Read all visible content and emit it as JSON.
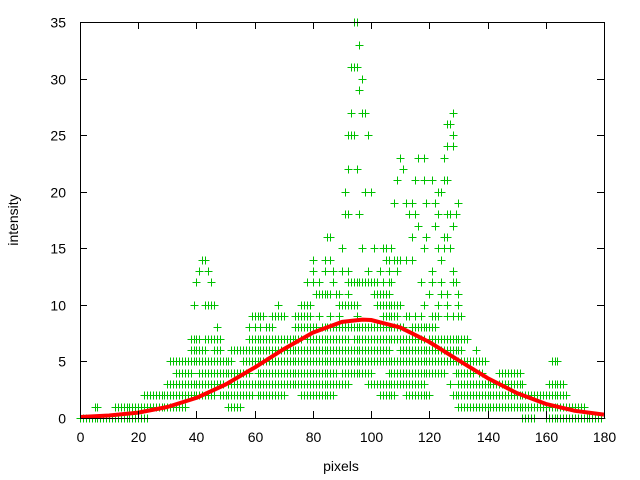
{
  "chart_data": {
    "type": "scatter",
    "title": "",
    "xlabel": "pixels",
    "ylabel": "intensity",
    "xlim": [
      0,
      180
    ],
    "ylim": [
      0,
      35
    ],
    "xticks": [
      "0",
      "20",
      "40",
      "60",
      "80",
      "100",
      "120",
      "140",
      "160",
      "180"
    ],
    "yticks": [
      "0",
      "5",
      "10",
      "15",
      "20",
      "25",
      "30",
      "35"
    ],
    "grid": false,
    "legend": "none",
    "colors": {
      "points": "#00c000",
      "fit": "#ff0000",
      "axes": "#000000"
    },
    "points_marker": "plus",
    "points_by_intensity": [
      {
        "y": 0,
        "x": [
          0,
          1,
          2,
          3,
          4,
          5,
          6,
          7,
          8,
          9,
          10,
          11,
          12,
          13,
          14,
          15,
          16,
          17,
          18,
          19,
          20,
          21,
          22,
          23,
          152,
          153,
          154,
          155,
          156,
          160,
          161,
          162,
          163,
          164,
          165,
          166,
          167,
          168,
          169,
          170,
          171,
          172,
          173,
          174,
          175,
          176,
          177,
          178,
          179
        ]
      },
      {
        "y": 1,
        "x": [
          5,
          6,
          12,
          13,
          14,
          15,
          16,
          17,
          18,
          19,
          20,
          21,
          22,
          23,
          24,
          25,
          26,
          27,
          28,
          29,
          30,
          31,
          32,
          33,
          34,
          35,
          36,
          51,
          52,
          53,
          54,
          55,
          130,
          131,
          132,
          133,
          134,
          135,
          136,
          137,
          138,
          139,
          140,
          141,
          142,
          143,
          144,
          145,
          146,
          147,
          148,
          149,
          150,
          151,
          152,
          153,
          154,
          155,
          156,
          157,
          158,
          159,
          160,
          161,
          162,
          163,
          164,
          165,
          166,
          167,
          168,
          169,
          170,
          171,
          172,
          173
        ]
      },
      {
        "y": 2,
        "x": [
          22,
          23,
          24,
          25,
          26,
          27,
          28,
          29,
          30,
          31,
          32,
          33,
          34,
          35,
          36,
          37,
          38,
          39,
          40,
          41,
          42,
          43,
          44,
          45,
          46,
          48,
          49,
          50,
          51,
          52,
          53,
          54,
          55,
          56,
          57,
          58,
          59,
          61,
          62,
          63,
          64,
          65,
          66,
          67,
          68,
          69,
          70,
          76,
          77,
          78,
          79,
          80,
          81,
          82,
          83,
          84,
          85,
          86,
          87,
          103,
          104,
          105,
          106,
          107,
          108,
          112,
          113,
          114,
          115,
          116,
          117,
          118,
          119,
          120,
          128,
          129,
          130,
          131,
          132,
          133,
          134,
          135,
          136,
          137,
          138,
          139,
          140,
          141,
          142,
          143,
          144,
          145,
          146,
          147,
          148,
          149,
          150,
          151,
          152,
          153,
          154,
          155,
          156,
          157,
          158,
          159,
          160,
          161,
          162,
          163,
          164,
          165,
          166,
          167
        ]
      },
      {
        "y": 3,
        "x": [
          30,
          31,
          32,
          33,
          34,
          35,
          36,
          37,
          38,
          39,
          40,
          41,
          42,
          43,
          44,
          45,
          46,
          47,
          48,
          49,
          51,
          52,
          53,
          54,
          55,
          56,
          57,
          58,
          59,
          60,
          61,
          62,
          63,
          64,
          65,
          66,
          67,
          68,
          69,
          70,
          71,
          72,
          73,
          74,
          75,
          76,
          77,
          78,
          79,
          80,
          81,
          82,
          83,
          84,
          85,
          86,
          87,
          88,
          89,
          90,
          91,
          92,
          99,
          100,
          101,
          102,
          103,
          104,
          105,
          106,
          107,
          108,
          109,
          110,
          111,
          112,
          113,
          114,
          115,
          116,
          117,
          118,
          127,
          130,
          131,
          132,
          133,
          134,
          135,
          136,
          137,
          138,
          139,
          140,
          141,
          142,
          143,
          144,
          145,
          146,
          147,
          148,
          149,
          150,
          151,
          152,
          161,
          162,
          163,
          164,
          165,
          166
        ]
      },
      {
        "y": 4,
        "x": [
          33,
          34,
          35,
          36,
          37,
          38,
          41,
          42,
          43,
          44,
          45,
          46,
          47,
          48,
          49,
          50,
          51,
          52,
          53,
          54,
          55,
          56,
          57,
          58,
          61,
          62,
          63,
          64,
          65,
          66,
          67,
          68,
          69,
          70,
          71,
          72,
          73,
          74,
          75,
          76,
          77,
          78,
          79,
          80,
          81,
          82,
          83,
          84,
          85,
          86,
          87,
          88,
          90,
          91,
          92,
          93,
          94,
          95,
          96,
          97,
          98,
          99,
          100,
          106,
          107,
          108,
          109,
          110,
          111,
          112,
          113,
          114,
          115,
          116,
          117,
          118,
          119,
          120,
          121,
          122,
          123,
          124,
          125,
          129,
          130,
          131,
          132,
          133,
          134,
          135,
          137,
          138,
          144,
          145,
          146,
          147,
          148,
          149,
          150,
          151
        ]
      },
      {
        "y": 5,
        "x": [
          31,
          32,
          33,
          34,
          35,
          36,
          37,
          38,
          39,
          40,
          41,
          42,
          43,
          44,
          45,
          46,
          47,
          48,
          49,
          50,
          51,
          52,
          56,
          57,
          58,
          59,
          60,
          61,
          62,
          63,
          64,
          65,
          66,
          67,
          68,
          69,
          70,
          71,
          72,
          73,
          74,
          75,
          76,
          77,
          78,
          79,
          80,
          81,
          82,
          83,
          84,
          85,
          86,
          87,
          88,
          89,
          90,
          91,
          92,
          93,
          94,
          95,
          96,
          97,
          98,
          99,
          100,
          101,
          102,
          103,
          104,
          105,
          106,
          107,
          108,
          109,
          110,
          111,
          112,
          113,
          114,
          115,
          116,
          117,
          118,
          119,
          120,
          121,
          122,
          123,
          124,
          125,
          126,
          127,
          128,
          129,
          130,
          131,
          132,
          133,
          134,
          135,
          136,
          137,
          138,
          139,
          162,
          163,
          164
        ]
      },
      {
        "y": 6,
        "x": [
          38,
          39,
          40,
          41,
          42,
          43,
          46,
          47,
          48,
          52,
          53,
          54,
          55,
          56,
          57,
          58,
          59,
          60,
          61,
          62,
          63,
          64,
          65,
          66,
          67,
          68,
          69,
          70,
          71,
          72,
          73,
          74,
          75,
          76,
          77,
          78,
          79,
          80,
          81,
          82,
          83,
          84,
          85,
          86,
          87,
          88,
          89,
          90,
          91,
          92,
          93,
          94,
          95,
          96,
          97,
          98,
          99,
          100,
          101,
          102,
          103,
          104,
          105,
          106,
          110,
          111,
          112,
          113,
          114,
          115,
          116,
          117,
          118,
          119,
          120,
          121,
          122,
          123,
          124,
          125,
          126,
          127,
          128,
          129,
          130,
          131,
          136
        ]
      },
      {
        "y": 7,
        "x": [
          38,
          39,
          40,
          41,
          43,
          44,
          45,
          46,
          47,
          48,
          58,
          59,
          60,
          61,
          62,
          63,
          64,
          65,
          66,
          67,
          68,
          69,
          70,
          71,
          72,
          73,
          74,
          75,
          76,
          78,
          79,
          80,
          81,
          82,
          83,
          84,
          85,
          86,
          87,
          88,
          89,
          90,
          91,
          92,
          94,
          95,
          96,
          97,
          98,
          99,
          100,
          101,
          102,
          103,
          104,
          105,
          106,
          107,
          108,
          109,
          110,
          111,
          112,
          113,
          114,
          115,
          116,
          117,
          118,
          120,
          121,
          122,
          123,
          124,
          125,
          126,
          127,
          128,
          129,
          130,
          131,
          132,
          133
        ]
      },
      {
        "y": 8,
        "x": [
          47,
          58,
          60,
          62,
          64,
          65,
          66,
          74,
          75,
          76,
          77,
          78,
          79,
          80,
          81,
          83,
          84,
          85,
          86,
          87,
          88,
          89,
          90,
          91,
          92,
          93,
          94,
          95,
          96,
          97,
          98,
          99,
          100,
          101,
          102,
          103,
          104,
          105,
          106,
          107,
          108,
          109,
          110,
          111,
          114,
          115,
          116,
          117,
          118,
          119,
          120,
          121,
          122
        ]
      },
      {
        "y": 9,
        "x": [
          59,
          60,
          61,
          62,
          63,
          66,
          67,
          68,
          69,
          70,
          74,
          75,
          76,
          77,
          78,
          79,
          82,
          86,
          89,
          95,
          104,
          105,
          106,
          107,
          108,
          109,
          112,
          113,
          115,
          117,
          121,
          122,
          123,
          126,
          128,
          130,
          131
        ]
      },
      {
        "y": 10,
        "x": [
          39,
          43,
          44,
          45,
          46,
          68,
          76,
          77,
          78,
          79,
          89,
          90,
          91,
          92,
          93,
          94,
          95,
          102,
          103,
          104,
          105,
          106,
          107,
          108,
          109,
          110,
          118,
          123,
          126,
          130
        ]
      },
      {
        "y": 11,
        "x": [
          81,
          82,
          83,
          84,
          85,
          86,
          88,
          89,
          92,
          101,
          102,
          103,
          104,
          105,
          106,
          120,
          124,
          126,
          130
        ]
      },
      {
        "y": 12,
        "x": [
          40,
          45,
          78,
          80,
          82,
          87,
          92,
          93,
          94,
          95,
          96,
          97,
          98,
          99,
          100,
          101,
          102,
          104,
          106,
          107,
          117,
          121,
          124,
          128,
          129
        ]
      },
      {
        "y": 13,
        "x": [
          41,
          44,
          80,
          84,
          87,
          90,
          92,
          99,
          103,
          106,
          109,
          121,
          128
        ]
      },
      {
        "y": 14,
        "x": [
          42,
          43,
          80,
          84,
          86,
          105,
          106,
          108,
          109,
          110,
          112,
          114,
          124
        ]
      },
      {
        "y": 15,
        "x": [
          90,
          97,
          101,
          104,
          105,
          107,
          118,
          123,
          125,
          127
        ]
      },
      {
        "y": 16,
        "x": [
          85,
          86,
          114,
          119,
          125,
          126
        ]
      },
      {
        "y": 17,
        "x": [
          116,
          122,
          128
        ]
      },
      {
        "y": 18,
        "x": [
          91,
          92,
          96,
          113,
          115,
          123,
          126,
          127,
          129
        ]
      },
      {
        "y": 19,
        "x": [
          108,
          112,
          114,
          119,
          122,
          130
        ]
      },
      {
        "y": 20,
        "x": [
          91,
          98,
          100,
          123,
          124
        ]
      },
      {
        "y": 21,
        "x": [
          109,
          115,
          118,
          121,
          125,
          126
        ]
      },
      {
        "y": 22,
        "x": [
          92,
          95,
          111
        ]
      },
      {
        "y": 23,
        "x": [
          110,
          116,
          118,
          125
        ]
      },
      {
        "y": 24,
        "x": [
          126,
          128
        ]
      },
      {
        "y": 25,
        "x": [
          92,
          93,
          94,
          99,
          128
        ]
      },
      {
        "y": 26,
        "x": [
          126,
          127
        ]
      },
      {
        "y": 27,
        "x": [
          93,
          97,
          98,
          128
        ]
      },
      {
        "y": 29,
        "x": [
          96
        ]
      },
      {
        "y": 30,
        "x": [
          97
        ]
      },
      {
        "y": 31,
        "x": [
          93,
          94,
          95
        ]
      },
      {
        "y": 33,
        "x": [
          96
        ]
      },
      {
        "y": 35,
        "x": [
          94,
          95
        ]
      }
    ],
    "fit_curve": {
      "x": [
        0,
        10,
        20,
        30,
        40,
        50,
        60,
        70,
        80,
        90,
        97,
        100,
        110,
        120,
        130,
        140,
        150,
        160,
        170,
        180
      ],
      "y": [
        0.09,
        0.22,
        0.48,
        0.97,
        1.78,
        2.96,
        4.46,
        6.09,
        7.55,
        8.49,
        8.7,
        8.66,
        8.01,
        6.72,
        5.11,
        3.53,
        2.21,
        1.25,
        0.64,
        0.3
      ]
    }
  }
}
